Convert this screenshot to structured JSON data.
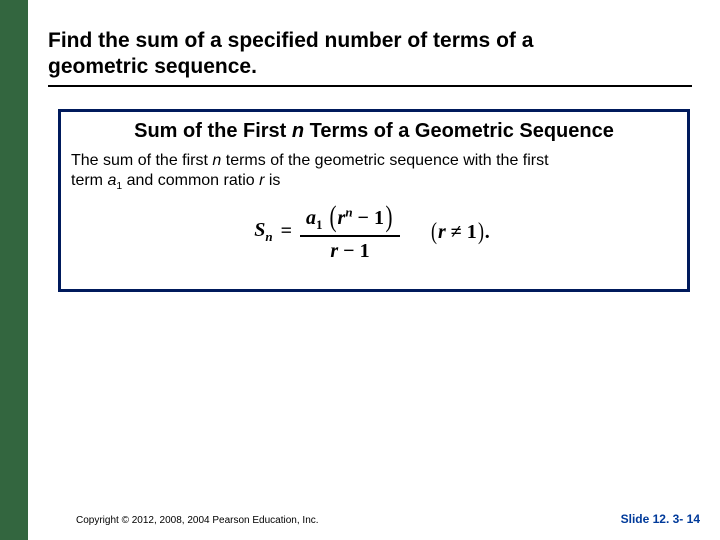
{
  "slide": {
    "accent_color": "#33663f",
    "border_color": "#001a5c",
    "heading_part1": "Find the sum of a specified number of terms of a",
    "heading_part2": "geometric sequence.",
    "box_title_pre": "Sum of the First ",
    "box_title_n": "n",
    "box_title_post": " Terms of a Geometric Sequence",
    "body_1": "The sum of the first ",
    "body_n": "n",
    "body_2": " terms of the geometric sequence with the first",
    "body_3": "term ",
    "body_a": "a",
    "body_sub1": "1",
    "body_4": " and common ratio ",
    "body_r": "r",
    "body_5": " is",
    "formula": {
      "S": "S",
      "n_sub": "n",
      "eq": "=",
      "a": "a",
      "one": "1",
      "r": "r",
      "n_sup": "n",
      "minus1_num": " − 1",
      "den_r": "r",
      "den_minus1": " − 1",
      "cond_r": "r",
      "neq": " ≠ ",
      "cond_1": "1",
      "period": "."
    },
    "copyright": "Copyright © 2012, 2008, 2004  Pearson Education, Inc.",
    "slide_label": "Slide 12. 3- 14"
  }
}
